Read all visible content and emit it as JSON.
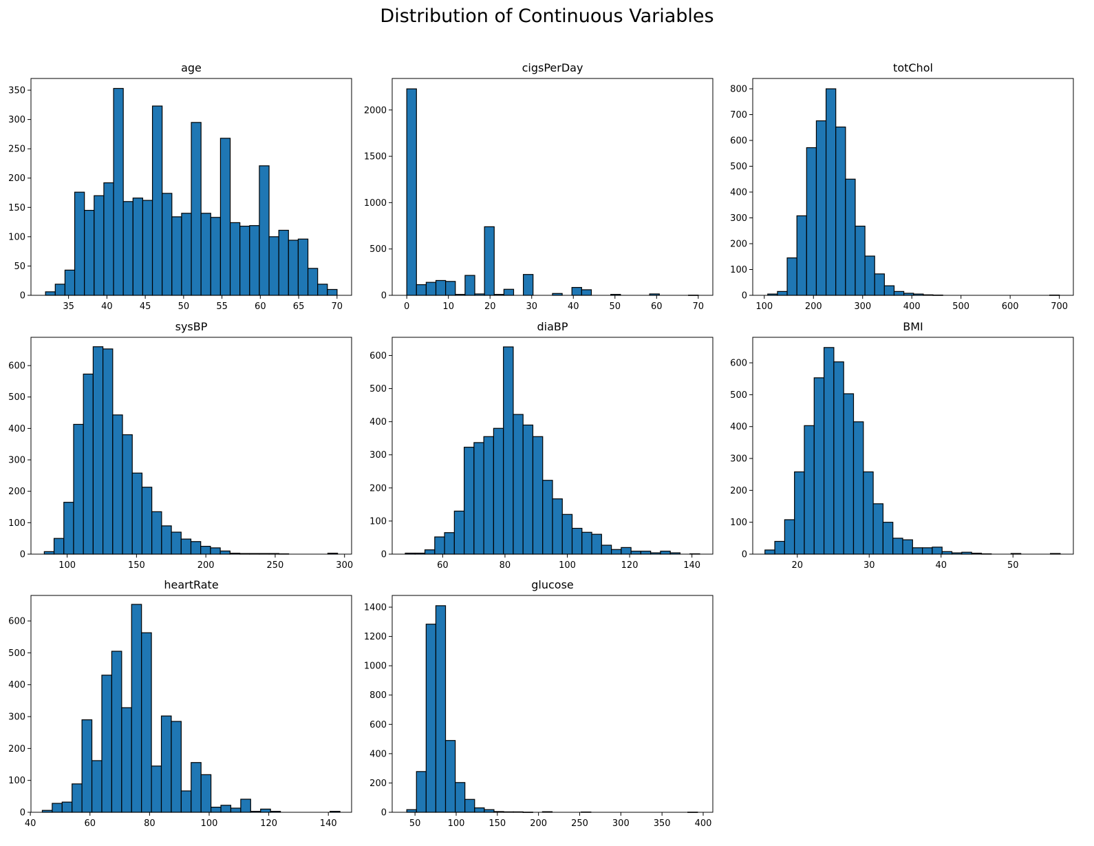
{
  "figure_title": "Distribution of Continuous Variables",
  "colors": {
    "bar_fill": "#1f77b4",
    "bar_edge": "#000000",
    "axes": "#000000",
    "background": "#ffffff"
  },
  "chart_data": [
    {
      "type": "bar",
      "title": "age",
      "xlim": [
        30.1,
        71.9
      ],
      "ylim": [
        0,
        370
      ],
      "xticks": [
        35,
        40,
        45,
        50,
        55,
        60,
        65,
        70
      ],
      "yticks": [
        0,
        50,
        100,
        150,
        200,
        250,
        300,
        350
      ],
      "bin_start": 32,
      "bin_width": 1.267,
      "values": [
        6,
        19,
        43,
        176,
        145,
        170,
        192,
        353,
        160,
        166,
        162,
        323,
        174,
        134,
        140,
        295,
        140,
        133,
        268,
        124,
        118,
        119,
        221,
        100,
        111,
        94,
        96,
        46,
        19,
        10
      ]
    },
    {
      "type": "bar",
      "title": "cigsPerDay",
      "xlim": [
        -3.5,
        73.5
      ],
      "ylim": [
        0,
        2340
      ],
      "xticks": [
        0,
        10,
        20,
        30,
        40,
        50,
        60,
        70
      ],
      "yticks": [
        0,
        500,
        1000,
        1500,
        2000
      ],
      "bin_start": 0,
      "bin_width": 2.333,
      "values": [
        2228,
        115,
        140,
        160,
        150,
        10,
        215,
        15,
        740,
        10,
        65,
        0,
        225,
        0,
        0,
        20,
        0,
        85,
        60,
        0,
        0,
        10,
        0,
        0,
        0,
        15,
        0,
        0,
        0,
        2
      ]
    },
    {
      "type": "bar",
      "title": "totChol",
      "xlim": [
        76.5,
        728.5
      ],
      "ylim": [
        0,
        840
      ],
      "xticks": [
        100,
        200,
        300,
        400,
        500,
        600,
        700
      ],
      "yticks": [
        0,
        100,
        200,
        300,
        400,
        500,
        600,
        700,
        800
      ],
      "bin_start": 107,
      "bin_width": 19.77,
      "values": [
        5,
        15,
        145,
        308,
        572,
        676,
        800,
        652,
        450,
        268,
        152,
        83,
        37,
        15,
        8,
        5,
        2,
        1,
        0,
        0,
        0,
        0,
        0,
        0,
        0,
        0,
        0,
        0,
        0,
        1
      ]
    },
    {
      "type": "bar",
      "title": "sysBP",
      "xlim": [
        73.9,
        305.1
      ],
      "ylim": [
        0,
        690
      ],
      "xticks": [
        100,
        150,
        200,
        250,
        300
      ],
      "yticks": [
        0,
        100,
        200,
        300,
        400,
        500,
        600
      ],
      "bin_start": 83.5,
      "bin_width": 7.05,
      "values": [
        8,
        50,
        165,
        413,
        573,
        660,
        653,
        443,
        380,
        258,
        213,
        135,
        90,
        70,
        48,
        40,
        25,
        20,
        10,
        3,
        2,
        2,
        2,
        2,
        1,
        0,
        0,
        0,
        0,
        3
      ]
    },
    {
      "type": "bar",
      "title": "diaBP",
      "xlim": [
        43.8,
        146.7
      ],
      "ylim": [
        0,
        655
      ],
      "xticks": [
        60,
        80,
        100,
        120,
        140
      ],
      "yticks": [
        0,
        100,
        200,
        300,
        400,
        500,
        600
      ],
      "bin_start": 48,
      "bin_width": 3.15,
      "values": [
        3,
        3,
        13,
        52,
        65,
        130,
        323,
        337,
        355,
        380,
        626,
        422,
        390,
        355,
        223,
        167,
        120,
        78,
        66,
        60,
        27,
        14,
        20,
        9,
        9,
        4,
        9,
        4,
        0,
        1
      ]
    },
    {
      "type": "bar",
      "title": "BMI",
      "xlim": [
        13.8,
        58.4
      ],
      "ylim": [
        0,
        680
      ],
      "xticks": [
        20,
        30,
        40,
        50
      ],
      "yticks": [
        0,
        100,
        200,
        300,
        400,
        500,
        600
      ],
      "bin_start": 15.5,
      "bin_width": 1.369,
      "values": [
        13,
        40,
        108,
        258,
        403,
        553,
        648,
        603,
        503,
        415,
        258,
        158,
        100,
        50,
        45,
        20,
        20,
        22,
        8,
        4,
        6,
        3,
        1,
        0,
        0,
        2,
        0,
        0,
        0,
        2
      ]
    },
    {
      "type": "bar",
      "title": "heartRate",
      "xlim": [
        40.2,
        147.8
      ],
      "ylim": [
        0,
        680
      ],
      "xticks": [
        40,
        60,
        80,
        100,
        120,
        140
      ],
      "yticks": [
        0,
        100,
        200,
        300,
        400,
        500,
        600
      ],
      "bin_start": 44,
      "bin_width": 3.33,
      "values": [
        6,
        28,
        32,
        89,
        290,
        162,
        430,
        505,
        328,
        652,
        563,
        145,
        302,
        285,
        67,
        156,
        118,
        16,
        22,
        13,
        41,
        3,
        10,
        3,
        0,
        0,
        0,
        0,
        0,
        3
      ]
    },
    {
      "type": "bar",
      "title": "glucose",
      "xlim": [
        22.3,
        411.7
      ],
      "ylim": [
        0,
        1480
      ],
      "xticks": [
        50,
        100,
        150,
        200,
        250,
        300,
        350,
        400
      ],
      "yticks": [
        0,
        200,
        400,
        600,
        800,
        1000,
        1200,
        1400
      ],
      "bin_start": 40,
      "bin_width": 11.77,
      "values": [
        18,
        278,
        1284,
        1410,
        490,
        203,
        88,
        30,
        18,
        5,
        3,
        3,
        1,
        0,
        4,
        0,
        0,
        0,
        2,
        0,
        0,
        0,
        0,
        0,
        0,
        0,
        0,
        0,
        0,
        1
      ]
    }
  ]
}
